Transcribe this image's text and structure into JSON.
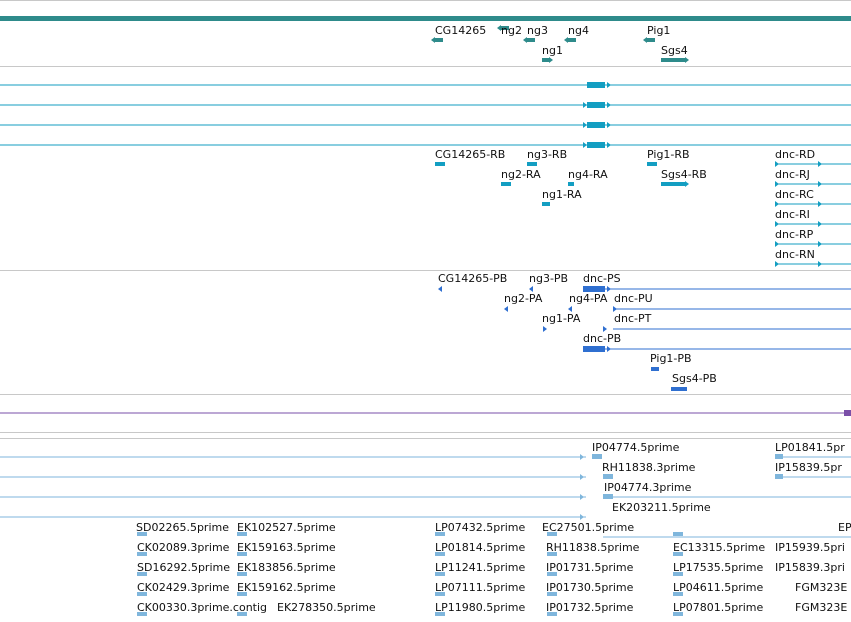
{
  "colors": {
    "gene": "#2e8b8b",
    "transcript": "#139ec2",
    "protein": "#2f6fd0",
    "variant": "#7a4fa8",
    "est": "#7fb6dc",
    "separator": "#c8c8c8",
    "top_bar": "#2e8b8b"
  },
  "tracks": {
    "genes": {
      "labels": [
        {
          "id": "CG14265",
          "text": "CG14265"
        },
        {
          "id": "ng2",
          "text": "ng2"
        },
        {
          "id": "ng3",
          "text": "ng3"
        },
        {
          "id": "ng4",
          "text": "ng4"
        },
        {
          "id": "Pig1",
          "text": "Pig1"
        },
        {
          "id": "ng1",
          "text": "ng1"
        },
        {
          "id": "Sgs4",
          "text": "Sgs4"
        }
      ]
    },
    "transcripts": {
      "labels": [
        {
          "id": "CG14265-RB",
          "text": "CG14265-RB"
        },
        {
          "id": "ng3-RB",
          "text": "ng3-RB"
        },
        {
          "id": "Pig1-RB",
          "text": "Pig1-RB"
        },
        {
          "id": "dnc-RD",
          "text": "dnc-RD"
        },
        {
          "id": "ng2-RA",
          "text": "ng2-RA"
        },
        {
          "id": "ng4-RA",
          "text": "ng4-RA"
        },
        {
          "id": "Sgs4-RB",
          "text": "Sgs4-RB"
        },
        {
          "id": "dnc-RJ",
          "text": "dnc-RJ"
        },
        {
          "id": "ng1-RA",
          "text": "ng1-RA"
        },
        {
          "id": "dnc-RC",
          "text": "dnc-RC"
        },
        {
          "id": "dnc-RI",
          "text": "dnc-RI"
        },
        {
          "id": "dnc-RP",
          "text": "dnc-RP"
        },
        {
          "id": "dnc-RN",
          "text": "dnc-RN"
        }
      ]
    },
    "proteins": {
      "labels": [
        {
          "id": "CG14265-PB",
          "text": "CG14265-PB"
        },
        {
          "id": "ng3-PB",
          "text": "ng3-PB"
        },
        {
          "id": "dnc-PS",
          "text": "dnc-PS"
        },
        {
          "id": "ng2-PA",
          "text": "ng2-PA"
        },
        {
          "id": "ng4-PA",
          "text": "ng4-PA"
        },
        {
          "id": "dnc-PU",
          "text": "dnc-PU"
        },
        {
          "id": "ng1-PA",
          "text": "ng1-PA"
        },
        {
          "id": "dnc-PT",
          "text": "dnc-PT"
        },
        {
          "id": "dnc-PB",
          "text": "dnc-PB"
        },
        {
          "id": "Pig1-PB",
          "text": "Pig1-PB"
        },
        {
          "id": "Sgs4-PB",
          "text": "Sgs4-PB"
        }
      ]
    },
    "ests": {
      "labels": [
        {
          "id": "IP04774.5prime",
          "text": "IP04774.5prime"
        },
        {
          "id": "LP01841.5prime",
          "text": "LP01841.5pr"
        },
        {
          "id": "RH11838.3prime",
          "text": "RH11838.3prime"
        },
        {
          "id": "IP15839.5prime",
          "text": "IP15839.5pr"
        },
        {
          "id": "IP04774.3prime",
          "text": "IP04774.3prime"
        },
        {
          "id": "EK203211.5prime",
          "text": "EK203211.5prime"
        },
        {
          "id": "SD02265.5prime",
          "text": "SD02265.5prime"
        },
        {
          "id": "EK102527.5prime",
          "text": "EK102527.5prime"
        },
        {
          "id": "LP07432.5prime",
          "text": "LP07432.5prime"
        },
        {
          "id": "EC27501.5prime",
          "text": "EC27501.5prime"
        },
        {
          "id": "EP-cut",
          "text": "EP"
        },
        {
          "id": "CK02089.3prime",
          "text": "CK02089.3prime"
        },
        {
          "id": "EK159163.5prime",
          "text": "EK159163.5prime"
        },
        {
          "id": "LP01814.5prime",
          "text": "LP01814.5prime"
        },
        {
          "id": "RH11838.5prime",
          "text": "RH11838.5prime"
        },
        {
          "id": "EC13315.5prime",
          "text": "EC13315.5prime"
        },
        {
          "id": "IP15939.5prime",
          "text": "IP15939.5pri"
        },
        {
          "id": "SD16292.5prime",
          "text": "SD16292.5prime"
        },
        {
          "id": "EK183856.5prime",
          "text": "EK183856.5prime"
        },
        {
          "id": "LP11241.5prime",
          "text": "LP11241.5prime"
        },
        {
          "id": "IP01731.5prime",
          "text": "IP01731.5prime"
        },
        {
          "id": "LP17535.5prime",
          "text": "LP17535.5prime"
        },
        {
          "id": "IP15839.3prime",
          "text": "IP15839.3pri"
        },
        {
          "id": "CK02429.3prime",
          "text": "CK02429.3prime"
        },
        {
          "id": "EK159162.5prime",
          "text": "EK159162.5prime"
        },
        {
          "id": "LP07111.5prime",
          "text": "LP07111.5prime"
        },
        {
          "id": "IP01730.5prime",
          "text": "IP01730.5prime"
        },
        {
          "id": "LP04611.5prime",
          "text": "LP04611.5prime"
        },
        {
          "id": "FGM323E-a",
          "text": "FGM323E"
        },
        {
          "id": "CK00330.3prime.contig",
          "text": "CK00330.3prime.contig"
        },
        {
          "id": "EK278350.5prime",
          "text": "EK278350.5prime"
        },
        {
          "id": "LP11980.5prime",
          "text": "LP11980.5prime"
        },
        {
          "id": "IP01732.5prime",
          "text": "IP01732.5prime"
        },
        {
          "id": "LP07801.5prime",
          "text": "LP07801.5prime"
        },
        {
          "id": "FGM323E-b",
          "text": "FGM323E"
        }
      ]
    }
  }
}
